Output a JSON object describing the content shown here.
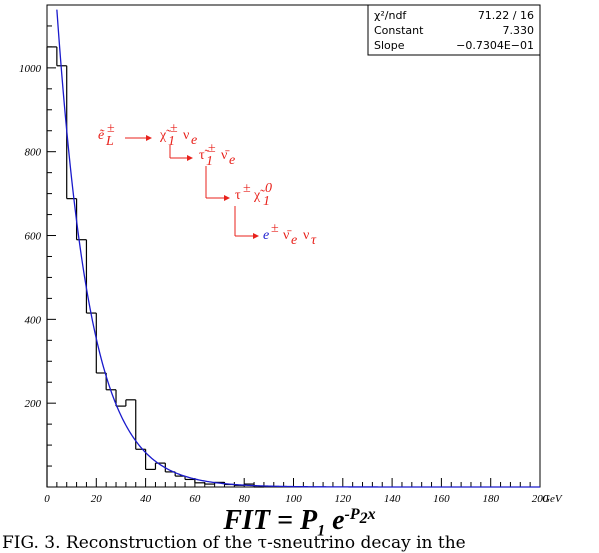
{
  "chart_data": {
    "type": "histogram",
    "title": "",
    "xlabel": "GeV",
    "ylabel": "",
    "xlim": [
      0,
      200
    ],
    "ylim": [
      0,
      1150
    ],
    "x_ticks": [
      0,
      20,
      40,
      60,
      80,
      100,
      120,
      140,
      160,
      180,
      200
    ],
    "y_ticks": [
      200,
      400,
      600,
      800,
      1000
    ],
    "bin_width": 4,
    "bin_edges": [
      0,
      4,
      8,
      12,
      16,
      20,
      24,
      28,
      32,
      36,
      40,
      44,
      48,
      52,
      56,
      60,
      64,
      68,
      72,
      76,
      80,
      84,
      88
    ],
    "bin_counts": [
      1050,
      1005,
      688,
      590,
      415,
      272,
      232,
      193,
      208,
      90,
      42,
      57,
      36,
      26,
      18,
      10,
      7,
      11,
      6,
      4,
      7,
      0
    ],
    "fit": {
      "function": "exponential",
      "constant": 7.33,
      "slope": -0.07304
    },
    "grid": false
  },
  "stats_box": {
    "rows": [
      {
        "label": "χ²/ndf",
        "value": "71.22   /   16"
      },
      {
        "label": "Constant",
        "value": "7.330"
      },
      {
        "label": "Slope",
        "value": "−0.7304E−01"
      }
    ]
  },
  "decay_chain": [
    {
      "parts": [
        "ẽ",
        "±",
        "L"
      ]
    },
    {
      "parts": [
        "χ̃",
        "±",
        "1",
        "ν",
        "e"
      ]
    },
    {
      "parts": [
        "τ̃",
        "±",
        "1",
        "ν̄",
        "e"
      ]
    },
    {
      "parts": [
        "τ",
        "±",
        "χ̃",
        "0",
        "1"
      ]
    },
    {
      "parts": [
        "e",
        "±",
        "ν̄",
        "e",
        "ν",
        "τ"
      ]
    }
  ],
  "formula": {
    "lhs": "FIT = P",
    "p1_sub": "1",
    "base": "e",
    "exp_main": "-P",
    "exp_sub": "2",
    "exp_var": "x"
  },
  "caption": "FIG. 3.  Reconstruction of the τ-sneutrino decay in the",
  "colors": {
    "histogram": "#000000",
    "fit_curve": "#1a1acc",
    "decay_text": "#e8211b",
    "electron": "#2020d0"
  }
}
